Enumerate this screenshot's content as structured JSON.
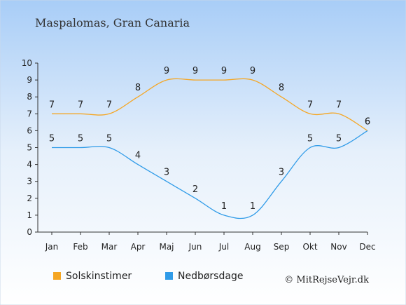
{
  "chart_data": {
    "type": "line",
    "title": "Maspalomas, Gran Canaria",
    "categories": [
      "Jan",
      "Feb",
      "Mar",
      "Apr",
      "Maj",
      "Jun",
      "Jul",
      "Aug",
      "Sep",
      "Okt",
      "Nov",
      "Dec"
    ],
    "ylim": [
      0,
      10
    ],
    "yticks": [
      "0",
      "1",
      "2",
      "3",
      "4",
      "5",
      "6",
      "7",
      "8",
      "9",
      "10"
    ],
    "grid": false,
    "legend_position": "bottom-left",
    "series": [
      {
        "name": "Solskinstimer",
        "color": "#f5a623",
        "values": [
          7,
          7,
          7,
          8,
          9,
          9,
          9,
          9,
          8,
          7,
          7,
          6
        ]
      },
      {
        "name": "Nedbørsdage",
        "color": "#2f9be8",
        "values": [
          5,
          5,
          5,
          4,
          3,
          2,
          1,
          1,
          3,
          5,
          5,
          6
        ]
      }
    ],
    "credit": "© MitRejseVejr.dk"
  }
}
